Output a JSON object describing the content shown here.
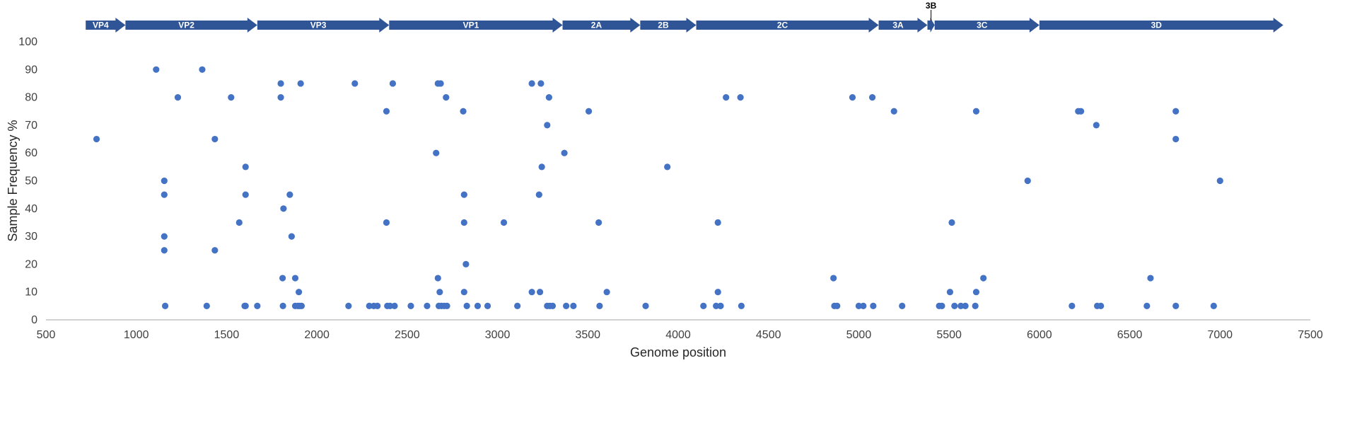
{
  "chart_data": {
    "type": "scatter",
    "xlabel": "Genome position",
    "ylabel": "Sample Frequency %",
    "xlim": [
      500,
      7500
    ],
    "ylim": [
      0,
      100
    ],
    "x_ticks": [
      500,
      1000,
      1500,
      2000,
      2500,
      3000,
      3500,
      4000,
      4500,
      5000,
      5500,
      6000,
      6500,
      7000,
      7500
    ],
    "y_ticks": [
      0,
      10,
      20,
      30,
      40,
      50,
      60,
      70,
      80,
      90,
      100
    ],
    "grid": false,
    "marker_color": "#4472C4",
    "genome_color": "#2F5597",
    "genome_map": [
      {
        "name": "VP4",
        "start": 720,
        "end": 940
      },
      {
        "name": "VP2",
        "start": 940,
        "end": 1670
      },
      {
        "name": "VP3",
        "start": 1670,
        "end": 2400
      },
      {
        "name": "VP1",
        "start": 2400,
        "end": 3360
      },
      {
        "name": "2A",
        "start": 3360,
        "end": 3790
      },
      {
        "name": "2B",
        "start": 3790,
        "end": 4100
      },
      {
        "name": "2C",
        "start": 4100,
        "end": 5110
      },
      {
        "name": "3A",
        "start": 5110,
        "end": 5380
      },
      {
        "name": "3B",
        "start": 5380,
        "end": 5420
      },
      {
        "name": "3C",
        "start": 5420,
        "end": 6000
      },
      {
        "name": "3D",
        "start": 6000,
        "end": 7350
      }
    ],
    "points": [
      [
        780,
        65
      ],
      [
        1110,
        90
      ],
      [
        1155,
        50
      ],
      [
        1155,
        45
      ],
      [
        1155,
        30
      ],
      [
        1155,
        25
      ],
      [
        1160,
        5
      ],
      [
        1230,
        80
      ],
      [
        1365,
        90
      ],
      [
        1390,
        5
      ],
      [
        1435,
        65
      ],
      [
        1435,
        25
      ],
      [
        1525,
        80
      ],
      [
        1570,
        35
      ],
      [
        1600,
        5
      ],
      [
        1605,
        55
      ],
      [
        1605,
        45
      ],
      [
        1605,
        5
      ],
      [
        1670,
        5
      ],
      [
        1800,
        85
      ],
      [
        1800,
        80
      ],
      [
        1810,
        15
      ],
      [
        1812,
        5
      ],
      [
        1815,
        40
      ],
      [
        1850,
        45
      ],
      [
        1860,
        30
      ],
      [
        1880,
        15
      ],
      [
        1880,
        5
      ],
      [
        1895,
        5
      ],
      [
        1900,
        10
      ],
      [
        1905,
        5
      ],
      [
        1910,
        85
      ],
      [
        1915,
        5
      ],
      [
        2175,
        5
      ],
      [
        2210,
        85
      ],
      [
        2290,
        5
      ],
      [
        2315,
        5
      ],
      [
        2335,
        5
      ],
      [
        2385,
        75
      ],
      [
        2385,
        35
      ],
      [
        2390,
        5
      ],
      [
        2405,
        5
      ],
      [
        2420,
        85
      ],
      [
        2430,
        5
      ],
      [
        2520,
        5
      ],
      [
        2610,
        5
      ],
      [
        2660,
        60
      ],
      [
        2670,
        85
      ],
      [
        2670,
        15
      ],
      [
        2675,
        5
      ],
      [
        2680,
        10
      ],
      [
        2685,
        85
      ],
      [
        2690,
        5
      ],
      [
        2705,
        5
      ],
      [
        2715,
        80
      ],
      [
        2720,
        5
      ],
      [
        2810,
        75
      ],
      [
        2815,
        45
      ],
      [
        2815,
        35
      ],
      [
        2815,
        10
      ],
      [
        2825,
        20
      ],
      [
        2830,
        5
      ],
      [
        2890,
        5
      ],
      [
        2945,
        5
      ],
      [
        3035,
        35
      ],
      [
        3110,
        5
      ],
      [
        3190,
        85
      ],
      [
        3190,
        10
      ],
      [
        3230,
        45
      ],
      [
        3235,
        10
      ],
      [
        3240,
        85
      ],
      [
        3245,
        55
      ],
      [
        3275,
        70
      ],
      [
        3275,
        5
      ],
      [
        3285,
        80
      ],
      [
        3290,
        5
      ],
      [
        3305,
        5
      ],
      [
        3370,
        60
      ],
      [
        3380,
        5
      ],
      [
        3420,
        5
      ],
      [
        3505,
        75
      ],
      [
        3560,
        35
      ],
      [
        3565,
        5
      ],
      [
        3605,
        10
      ],
      [
        3820,
        5
      ],
      [
        3940,
        55
      ],
      [
        4140,
        5
      ],
      [
        4210,
        5
      ],
      [
        4220,
        35
      ],
      [
        4220,
        10
      ],
      [
        4235,
        5
      ],
      [
        4265,
        80
      ],
      [
        4345,
        80
      ],
      [
        4350,
        5
      ],
      [
        4860,
        15
      ],
      [
        4865,
        5
      ],
      [
        4880,
        5
      ],
      [
        4965,
        80
      ],
      [
        5000,
        5
      ],
      [
        5025,
        5
      ],
      [
        5075,
        80
      ],
      [
        5080,
        5
      ],
      [
        5195,
        75
      ],
      [
        5240,
        5
      ],
      [
        5445,
        5
      ],
      [
        5460,
        5
      ],
      [
        5505,
        10
      ],
      [
        5515,
        35
      ],
      [
        5530,
        5
      ],
      [
        5565,
        5
      ],
      [
        5590,
        5
      ],
      [
        5645,
        5
      ],
      [
        5650,
        75
      ],
      [
        5650,
        10
      ],
      [
        5690,
        15
      ],
      [
        5935,
        50
      ],
      [
        6180,
        5
      ],
      [
        6215,
        75
      ],
      [
        6230,
        75
      ],
      [
        6315,
        70
      ],
      [
        6320,
        5
      ],
      [
        6340,
        5
      ],
      [
        6595,
        5
      ],
      [
        6615,
        15
      ],
      [
        6755,
        75
      ],
      [
        6755,
        65
      ],
      [
        6755,
        5
      ],
      [
        6965,
        5
      ],
      [
        7000,
        50
      ]
    ]
  }
}
